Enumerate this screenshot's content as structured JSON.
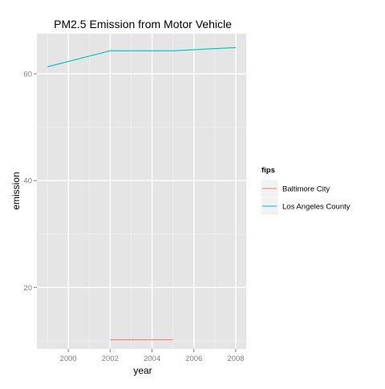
{
  "chart_data": {
    "type": "line",
    "title": "PM2.5 Emission from Motor Vehicle",
    "xlabel": "year",
    "ylabel": "emission",
    "xlim": [
      1998.5,
      2008.5
    ],
    "ylim": [
      8.5,
      67.5
    ],
    "x_ticks": [
      2000,
      2002,
      2004,
      2006,
      2008
    ],
    "x_tick_labels": [
      "2000",
      "2002",
      "2004",
      "2006",
      "2008"
    ],
    "y_ticks": [
      20,
      40,
      60
    ],
    "y_tick_labels": [
      "20",
      "40",
      "60"
    ],
    "grid": true,
    "legend": {
      "title": "fips",
      "placement": "right"
    },
    "series": [
      {
        "name": "Baltimore City",
        "color": "#F8766D",
        "x": [
          2002,
          2005
        ],
        "y": [
          10.2,
          10.2
        ]
      },
      {
        "name": "Los Angeles County",
        "color": "#00BFC4",
        "x": [
          1999,
          2002,
          2005,
          2008
        ],
        "y": [
          61.3,
          64.3,
          64.3,
          64.9
        ]
      }
    ]
  }
}
